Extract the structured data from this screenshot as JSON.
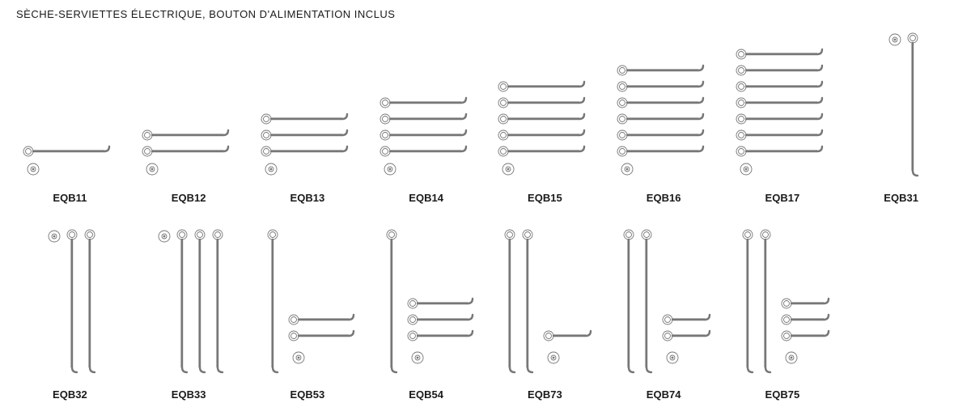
{
  "heading": "SÈCHE-SERVIETTES ÉLECTRIQUE, BOUTON D'ALIMENTATION INCLUS",
  "style": {
    "stroke": "#777777",
    "stroke_width": 1.2,
    "stroke_thin": 0.9,
    "fill": "#ffffff",
    "bar_length": 100,
    "bar_spacing": 20,
    "power_button_r_outer": 7,
    "power_button_r_inner": 3,
    "vertical_bar_height": 170,
    "vertical_bar_spacing": 22,
    "cap_r": 6
  },
  "products": [
    {
      "code": "EQB11",
      "type": "hbar",
      "h_bars": 1,
      "v_bars": 0,
      "button_below": true
    },
    {
      "code": "EQB12",
      "type": "hbar",
      "h_bars": 2,
      "v_bars": 0,
      "button_below": true
    },
    {
      "code": "EQB13",
      "type": "hbar",
      "h_bars": 3,
      "v_bars": 0,
      "button_below": true
    },
    {
      "code": "EQB14",
      "type": "hbar",
      "h_bars": 4,
      "v_bars": 0,
      "button_below": true
    },
    {
      "code": "EQB15",
      "type": "hbar",
      "h_bars": 5,
      "v_bars": 0,
      "button_below": true
    },
    {
      "code": "EQB16",
      "type": "hbar",
      "h_bars": 6,
      "v_bars": 0,
      "button_below": true
    },
    {
      "code": "EQB17",
      "type": "hbar",
      "h_bars": 7,
      "v_bars": 0,
      "button_below": true
    },
    {
      "code": "EQB31",
      "type": "vbar",
      "h_bars": 0,
      "v_bars": 1,
      "button_side": true
    },
    {
      "code": "EQB32",
      "type": "vbar",
      "h_bars": 0,
      "v_bars": 2,
      "button_side": true
    },
    {
      "code": "EQB33",
      "type": "vbar",
      "h_bars": 0,
      "v_bars": 3,
      "button_side": true
    },
    {
      "code": "EQB53",
      "type": "combo",
      "h_bars": 2,
      "v_bars": 1,
      "button_below": true
    },
    {
      "code": "EQB54",
      "type": "combo",
      "h_bars": 3,
      "v_bars": 1,
      "button_below": true
    },
    {
      "code": "EQB73",
      "type": "combo",
      "h_bars": 1,
      "v_bars": 2,
      "button_below": true
    },
    {
      "code": "EQB74",
      "type": "combo",
      "h_bars": 2,
      "v_bars": 2,
      "button_below": true
    },
    {
      "code": "EQB75",
      "type": "combo",
      "h_bars": 3,
      "v_bars": 2,
      "button_below": true
    }
  ]
}
